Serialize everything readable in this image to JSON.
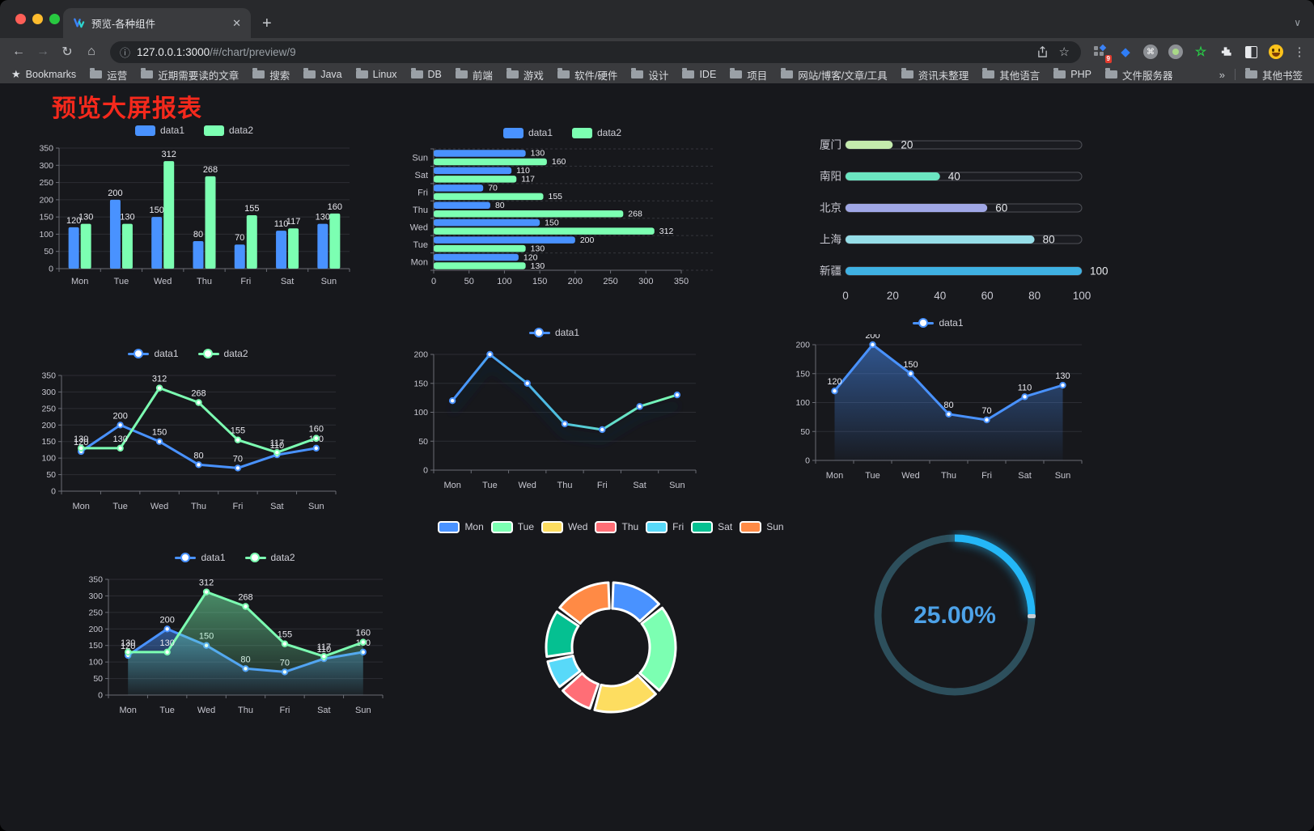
{
  "browser": {
    "window_controls": [
      "#ff5f57",
      "#febc2e",
      "#28c840"
    ],
    "tab": {
      "title": "预览-各种组件",
      "close_icon": "x",
      "favicon": "double-v-logo"
    },
    "new_tab_icon": "+",
    "nav_icons": [
      "back-arrow",
      "forward-arrow",
      "reload",
      "home"
    ],
    "url_host": "127.0.0.1:3000",
    "url_path": "/#/chart/preview/9",
    "omnibox_icons": [
      "info-icon",
      "share-icon",
      "star-icon"
    ],
    "extension_badge": "9",
    "extension_icons": [
      "grid-apps-icon",
      "gem-icon",
      "command-circle-icon",
      "dot-circle-icon",
      "star-outline-icon",
      "puzzle-icon",
      "contrast-icon",
      "emoji-face-icon"
    ],
    "menu_icon": "kebab-dots",
    "bookmarks_label": "Bookmarks",
    "bookmarks": [
      "运营",
      "近期需要读的文章",
      "搜索",
      "Java",
      "Linux",
      "DB",
      "前端",
      "游戏",
      "软件/硬件",
      "设计",
      "IDE",
      "项目",
      "网站/博客/文章/工具",
      "资讯未整理",
      "其他语言",
      "PHP",
      "文件服务器"
    ],
    "bookmarks_overflow": "»",
    "other_bookmarks": "其他书签"
  },
  "page": {
    "title": "预览大屏报表",
    "title_color": "#f5291c",
    "background": "#17181c"
  },
  "chart_data": [
    {
      "id": "grouped-bar",
      "type": "bar",
      "legend_marker": "pill",
      "categories": [
        "Mon",
        "Tue",
        "Wed",
        "Thu",
        "Fri",
        "Sat",
        "Sun"
      ],
      "ylim": [
        0,
        350
      ],
      "ytick_step": 50,
      "show_value_labels": true,
      "grid": true,
      "series": [
        {
          "name": "data1",
          "color": "#4992ff",
          "values": [
            120,
            200,
            150,
            80,
            70,
            110,
            130
          ]
        },
        {
          "name": "data2",
          "color": "#7cffb2",
          "values": [
            130,
            130,
            312,
            268,
            155,
            117,
            160
          ]
        }
      ]
    },
    {
      "id": "grouped-horizontal-bar",
      "type": "hbar",
      "legend_marker": "pill",
      "categories": [
        "Mon",
        "Tue",
        "Wed",
        "Thu",
        "Fri",
        "Sat",
        "Sun"
      ],
      "category_display_order": "Sun-at-top",
      "xlim": [
        0,
        350
      ],
      "xtick_step": 50,
      "show_value_labels": true,
      "grid": true,
      "series": [
        {
          "name": "data1",
          "color": "#4992ff",
          "values": [
            120,
            200,
            150,
            80,
            70,
            110,
            130
          ]
        },
        {
          "name": "data2",
          "color": "#7cffb2",
          "values": [
            130,
            130,
            312,
            268,
            155,
            117,
            160
          ]
        }
      ]
    },
    {
      "id": "city-progress-bars",
      "type": "progress",
      "max": 100,
      "xticks": [
        0,
        20,
        40,
        60,
        80,
        100
      ],
      "items": [
        {
          "label": "厦门",
          "value": 20,
          "color": "#c4ebad"
        },
        {
          "label": "南阳",
          "value": 40,
          "color": "#6be6c1"
        },
        {
          "label": "北京",
          "value": 60,
          "color": "#a0a7e6"
        },
        {
          "label": "上海",
          "value": 80,
          "color": "#96dee8"
        },
        {
          "label": "新疆",
          "value": 100,
          "color": "#3fb1e3"
        }
      ]
    },
    {
      "id": "two-series-line",
      "type": "line",
      "legend_marker": "line",
      "categories": [
        "Mon",
        "Tue",
        "Wed",
        "Thu",
        "Fri",
        "Sat",
        "Sun"
      ],
      "ylim": [
        0,
        350
      ],
      "ytick_step": 50,
      "show_value_labels": true,
      "markers": true,
      "grid": true,
      "series": [
        {
          "name": "data1",
          "color": "#4992ff",
          "values": [
            120,
            200,
            150,
            80,
            70,
            110,
            130
          ]
        },
        {
          "name": "data2",
          "color": "#7cffb2",
          "values": [
            130,
            130,
            312,
            268,
            155,
            117,
            160
          ]
        }
      ]
    },
    {
      "id": "gradient-line",
      "type": "line",
      "legend_marker": "line",
      "categories": [
        "Mon",
        "Tue",
        "Wed",
        "Thu",
        "Fri",
        "Sat",
        "Sun"
      ],
      "ylim": [
        0,
        200
      ],
      "ytick_step": 50,
      "show_value_labels": false,
      "markers": true,
      "shadow": true,
      "grid": true,
      "series": [
        {
          "name": "data1",
          "color": "#4992ff",
          "gradient_stroke": [
            "#4992ff",
            "#4fc3dc",
            "#7cffb2"
          ],
          "values": [
            120,
            200,
            150,
            80,
            70,
            110,
            130
          ]
        }
      ]
    },
    {
      "id": "area-line",
      "type": "line",
      "legend_marker": "line",
      "area": true,
      "categories": [
        "Mon",
        "Tue",
        "Wed",
        "Thu",
        "Fri",
        "Sat",
        "Sun"
      ],
      "ylim": [
        0,
        200
      ],
      "ytick_step": 50,
      "show_value_labels": true,
      "markers": true,
      "grid": true,
      "series": [
        {
          "name": "data1",
          "color": "#4992ff",
          "values": [
            120,
            200,
            150,
            80,
            70,
            110,
            130
          ]
        }
      ]
    },
    {
      "id": "two-series-area-line",
      "type": "line",
      "legend_marker": "line",
      "area": true,
      "categories": [
        "Mon",
        "Tue",
        "Wed",
        "Thu",
        "Fri",
        "Sat",
        "Sun"
      ],
      "ylim": [
        0,
        350
      ],
      "ytick_step": 50,
      "show_value_labels": true,
      "markers": true,
      "grid": true,
      "series": [
        {
          "name": "data1",
          "color": "#4992ff",
          "values": [
            120,
            200,
            150,
            80,
            70,
            110,
            130
          ]
        },
        {
          "name": "data2",
          "color": "#7cffb2",
          "values": [
            130,
            130,
            312,
            268,
            155,
            117,
            160
          ]
        }
      ]
    },
    {
      "id": "donut-pie",
      "type": "pie",
      "legend_marker": "pie",
      "categories": [
        "Mon",
        "Tue",
        "Wed",
        "Thu",
        "Fri",
        "Sat",
        "Sun"
      ],
      "values": [
        120,
        200,
        150,
        80,
        70,
        110,
        130
      ],
      "colors": [
        "#4992ff",
        "#7cffb2",
        "#fddd60",
        "#ff6e76",
        "#58d9f9",
        "#05c091",
        "#ff8a45"
      ],
      "inner_radius_ratio": 0.6,
      "border_color": "#ffffff"
    },
    {
      "id": "progress-gauge",
      "type": "gauge",
      "percent": 25,
      "value_label": "25.00%",
      "color": "#24b7f7",
      "track_color": "#2d4f5c",
      "text_color": "#4da2e8"
    }
  ]
}
